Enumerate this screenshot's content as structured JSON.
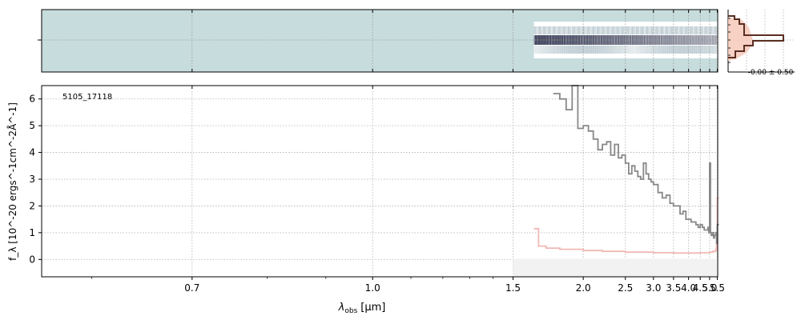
{
  "chart_data": [
    {
      "type": "line",
      "panel": "spectrum",
      "label": "5105_17118",
      "xlabel_main": "λ",
      "xlabel_sub": "obs",
      "xlabel_unit": "[μm]",
      "ylabel": "f_λ [10^-20 ergs^-1cm^-2Å^-1]",
      "x_scale": "reciprocal",
      "xlim": [
        0.56,
        5.53
      ],
      "ylim": [
        -0.65,
        6.5
      ],
      "x_ticks": [
        "0.7",
        "1.0",
        "1.5",
        "2.0",
        "2.5",
        "3.0",
        "3.5",
        "4.0",
        "4.5",
        "5.0",
        "5.5"
      ],
      "y_ticks": [
        "0",
        "1",
        "2",
        "3",
        "4",
        "5",
        "6"
      ],
      "grid": true,
      "colors": {
        "flux": "#888888",
        "error": "#f2b8b5",
        "background_band": "#f2f2f2"
      },
      "series": [
        {
          "x": [
            1.75,
            1.8,
            1.85,
            1.9,
            1.95,
            2.0,
            2.05,
            2.1,
            2.15,
            2.2,
            2.25,
            2.3,
            2.35,
            2.4,
            2.45,
            2.5,
            2.55,
            2.6,
            2.65,
            2.7,
            2.75,
            2.8,
            2.85,
            2.9,
            2.95,
            3.0,
            3.1,
            3.2,
            3.3,
            3.4,
            3.5,
            3.6,
            3.7,
            3.8,
            3.9,
            4.0,
            4.1,
            4.2,
            4.3,
            4.4,
            4.5,
            4.6,
            4.7,
            4.8,
            4.9,
            4.95,
            5.0,
            5.05,
            5.1,
            5.15,
            5.2,
            5.25,
            5.3,
            5.35,
            5.4,
            5.45,
            5.5
          ],
          "values": [
            6.2,
            6.0,
            5.6,
            6.5,
            4.9,
            5.0,
            4.8,
            4.5,
            4.1,
            4.3,
            4.4,
            3.9,
            4.3,
            3.8,
            3.9,
            3.6,
            3.2,
            3.5,
            3.3,
            3.1,
            3.0,
            3.6,
            3.2,
            3.0,
            2.9,
            2.8,
            2.5,
            2.3,
            2.4,
            2.1,
            2.0,
            2.0,
            1.7,
            1.8,
            1.5,
            1.5,
            1.4,
            1.4,
            1.3,
            1.2,
            1.3,
            1.2,
            1.1,
            1.1,
            1.2,
            1.0,
            3.6,
            1.0,
            0.9,
            0.9,
            1.0,
            0.8,
            0.9,
            0.9,
            1.0,
            0.6,
            1.3
          ]
        },
        {
          "x": [
            1.62,
            1.65,
            1.7,
            1.8,
            2.0,
            2.2,
            2.5,
            3.0,
            3.5,
            4.0,
            4.5,
            5.0,
            5.2,
            5.4,
            5.45,
            5.5
          ],
          "values": [
            1.15,
            0.5,
            0.42,
            0.38,
            0.33,
            0.3,
            0.27,
            0.25,
            0.24,
            0.24,
            0.25,
            0.27,
            0.3,
            0.38,
            0.6,
            2.3
          ]
        }
      ]
    },
    {
      "type": "heatmap",
      "panel": "2d-spectrum",
      "x_range": [
        1.62,
        5.5
      ],
      "colors": {
        "background": "#c7dcdc",
        "trace": "#1e2340",
        "cutout": "#ffffff"
      }
    },
    {
      "type": "line",
      "panel": "profile",
      "annotation": "-0.00 ± 0.50",
      "colors": {
        "profile": "#5a2e22",
        "fill": "#f6c9b8"
      }
    }
  ]
}
